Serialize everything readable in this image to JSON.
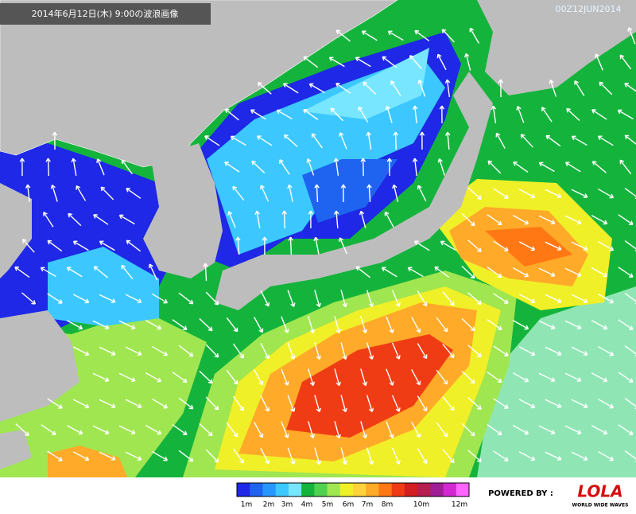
{
  "header": {
    "title": "2014年6月12日(木) 9:00の波浪画像",
    "timestamp": "00Z12JUN2014"
  },
  "legend": {
    "colors": [
      "#1e28e6",
      "#1e64f0",
      "#2896ff",
      "#3cc8ff",
      "#78e6ff",
      "#14b43c",
      "#50d250",
      "#a0e650",
      "#f0f028",
      "#ffd23c",
      "#ffaa28",
      "#ff7814",
      "#f03c14",
      "#d21e1e",
      "#b41e50",
      "#a01e96",
      "#d228d2",
      "#ff64ff"
    ],
    "labels": [
      "1m",
      "2m",
      "3m",
      "4m",
      "5m",
      "6m",
      "7m",
      "8m",
      "10m",
      "12m"
    ]
  },
  "credit": {
    "powered_by": "POWERED BY :",
    "logo": "LOLA",
    "tagline": "WORLD WIDE WAVES"
  }
}
